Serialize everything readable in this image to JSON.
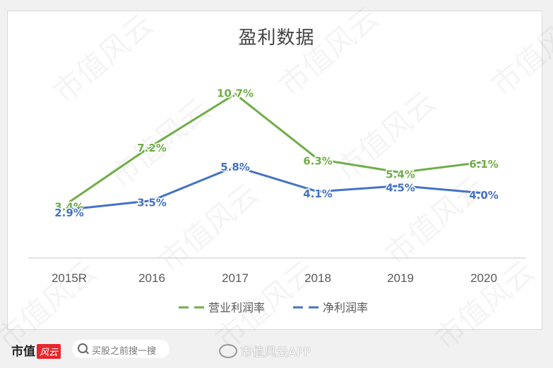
{
  "chart_data": {
    "type": "line",
    "title": "盈利数据",
    "categories": [
      "2015R",
      "2016",
      "2017",
      "2018",
      "2019",
      "2020"
    ],
    "series": [
      {
        "name": "营业利润率",
        "color": "#70ad47",
        "values": [
          3.4,
          7.2,
          10.7,
          6.3,
          5.4,
          6.1
        ],
        "labels": [
          "3.4%",
          "7.2%",
          "10.7%",
          "6.3%",
          "5.4%",
          "6.1%"
        ]
      },
      {
        "name": "净利润率",
        "color": "#4472c4",
        "values": [
          2.9,
          3.5,
          5.8,
          4.1,
          4.5,
          4.0
        ],
        "labels": [
          "2.9%",
          "3.5%",
          "5.8%",
          "4.1%",
          "4.5%",
          "4.0%"
        ]
      }
    ],
    "xlabel": "",
    "ylabel": "",
    "grid": false,
    "legend_position": "bottom",
    "y_axis_visible": false
  },
  "footer": {
    "brand_text": "市值",
    "brand_badge": "风云",
    "search_placeholder": "买股之前搜一搜",
    "weibo_label": "市值风云APP"
  },
  "watermark_text": "市值风云"
}
